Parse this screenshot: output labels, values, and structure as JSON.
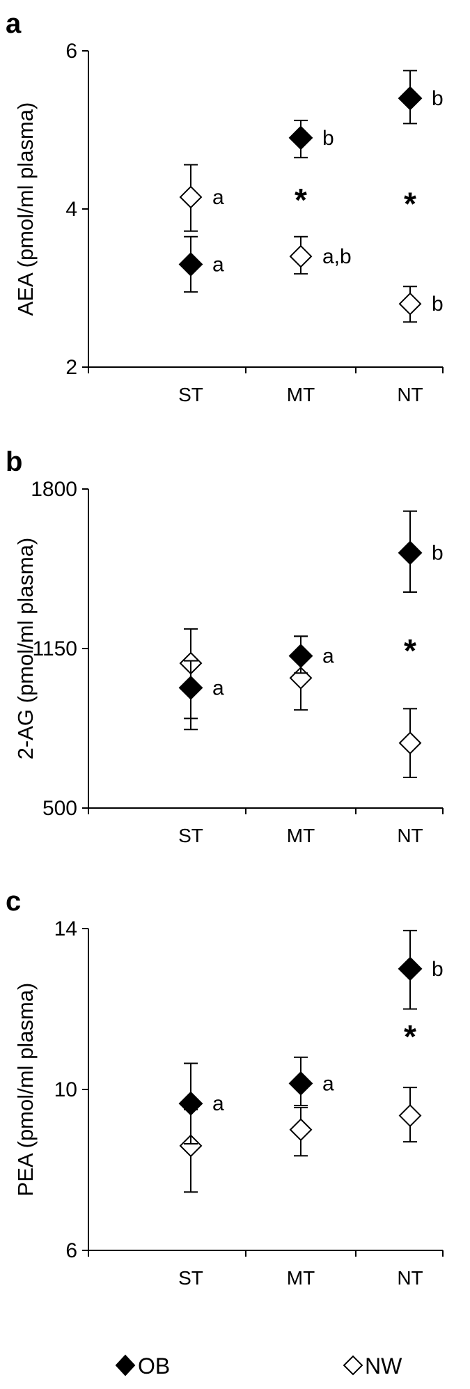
{
  "colors": {
    "ob": "#000000",
    "nw": "#ffffff",
    "axis": "#000000"
  },
  "legend": [
    {
      "key": "ob",
      "label": "OB",
      "marker": "filled-diamond"
    },
    {
      "key": "nw",
      "label": "NW",
      "marker": "open-diamond"
    }
  ],
  "chart_data": [
    {
      "panel": "a",
      "type": "scatter",
      "ylabel": "AEA (pmol/ml plasma)",
      "ylim": [
        2,
        6
      ],
      "yticks": [
        "2",
        "4",
        "6"
      ],
      "categories": [
        "ST",
        "MT",
        "NT"
      ],
      "series": [
        {
          "name": "OB",
          "values": [
            3.3,
            4.9,
            5.4
          ],
          "err_low": [
            2.95,
            4.65,
            5.08
          ],
          "err_high": [
            3.65,
            5.12,
            5.75
          ],
          "labels": [
            "a",
            "b",
            "b"
          ]
        },
        {
          "name": "NW",
          "values": [
            4.15,
            3.4,
            2.8
          ],
          "err_low": [
            3.72,
            3.18,
            2.57
          ],
          "err_high": [
            4.56,
            3.65,
            3.02
          ],
          "labels": [
            "a",
            "a,b",
            "b"
          ]
        }
      ],
      "significance": [
        null,
        "*",
        "*"
      ]
    },
    {
      "panel": "b",
      "type": "scatter",
      "ylabel": "2-AG (pmol/ml plasma)",
      "ylim": [
        500,
        1800
      ],
      "yticks": [
        "500",
        "1150",
        "1800"
      ],
      "categories": [
        "ST",
        "MT",
        "NT"
      ],
      "series": [
        {
          "name": "OB",
          "values": [
            990,
            1120,
            1540
          ],
          "err_low": [
            820,
            1050,
            1380
          ],
          "err_high": [
            1100,
            1200,
            1710
          ],
          "labels": [
            "a",
            "a",
            "b"
          ]
        },
        {
          "name": "NW",
          "values": [
            1090,
            1030,
            765
          ],
          "err_low": [
            865,
            900,
            625
          ],
          "err_high": [
            1230,
            1200,
            905
          ],
          "labels": [
            null,
            null,
            null
          ]
        }
      ],
      "significance": [
        null,
        null,
        "*"
      ]
    },
    {
      "panel": "c",
      "type": "scatter",
      "ylabel": "PEA (pmol/ml plasma)",
      "ylim": [
        6,
        14
      ],
      "yticks": [
        "6",
        "10",
        "14"
      ],
      "categories": [
        "ST",
        "MT",
        "NT"
      ],
      "series": [
        {
          "name": "OB",
          "values": [
            9.65,
            10.15,
            13.0
          ],
          "err_low": [
            8.65,
            9.6,
            12.0
          ],
          "err_high": [
            10.65,
            10.8,
            13.95
          ],
          "labels": [
            "a",
            "a",
            "b"
          ]
        },
        {
          "name": "NW",
          "values": [
            8.6,
            9.0,
            9.35
          ],
          "err_low": [
            7.45,
            8.35,
            8.7
          ],
          "err_high": [
            9.5,
            9.55,
            10.05
          ],
          "labels": [
            null,
            null,
            null
          ]
        }
      ],
      "significance": [
        null,
        null,
        "*"
      ]
    }
  ]
}
